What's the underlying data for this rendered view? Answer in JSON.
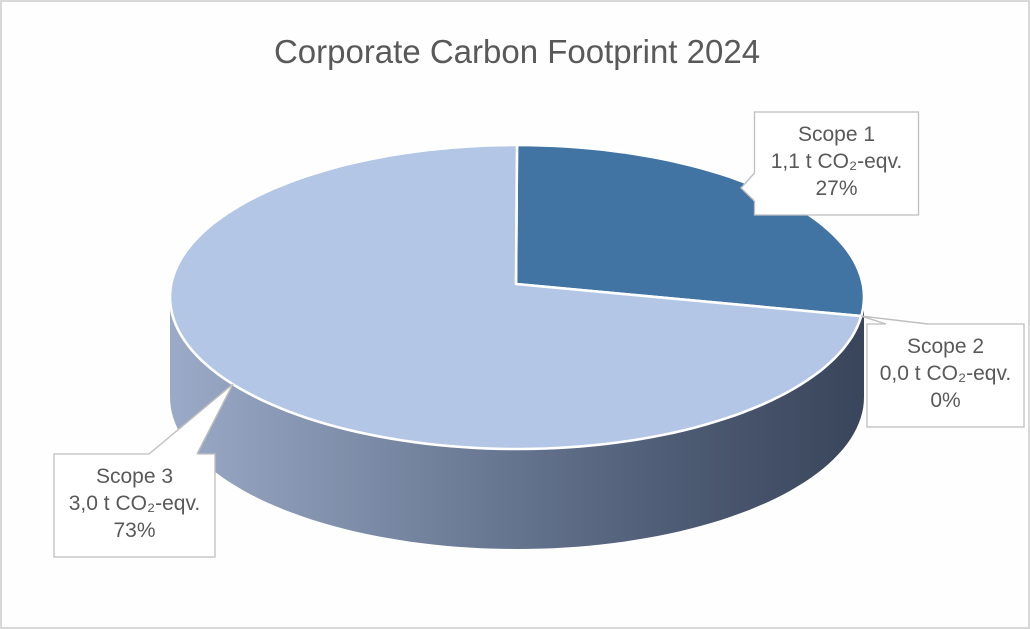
{
  "frame": {
    "background": "#FEFEFE",
    "border_color": "#D8D8D8"
  },
  "chart_data": {
    "type": "pie",
    "style": "3d-pie",
    "title": "Corporate Carbon Footprint 2024",
    "direction": "clockwise",
    "start_angle_deg_from_12": 0,
    "legend": "none",
    "label_style": "callout-boxes",
    "slices": [
      {
        "label": "Scope 1",
        "value": 1.1,
        "unit": "t CO₂-eqv.",
        "value_label": "1,1 t CO₂-eqv.",
        "percent": 27,
        "percent_label": "27%",
        "color": "#4173A3"
      },
      {
        "label": "Scope 2",
        "value": 0.0,
        "unit": "t CO₂-eqv.",
        "value_label": "0,0 t CO₂-eqv.",
        "percent": 0,
        "percent_label": "0%",
        "color": null
      },
      {
        "label": "Scope 3",
        "value": 3.0,
        "unit": "t CO₂-eqv.",
        "value_label": "3,0 t CO₂-eqv.",
        "percent": 73,
        "percent_label": "73%",
        "color": "#B3C6E5"
      }
    ],
    "colors": {
      "title_text": "#595959",
      "label_text": "#595959",
      "callout_border": "#BFBFBF",
      "callout_fill": "#FFFFFF",
      "slice_border": "#FFFFFF",
      "side_gradient": [
        "#9BABC7",
        "#6F7E99",
        "#4E5C75",
        "#39455A"
      ]
    }
  }
}
